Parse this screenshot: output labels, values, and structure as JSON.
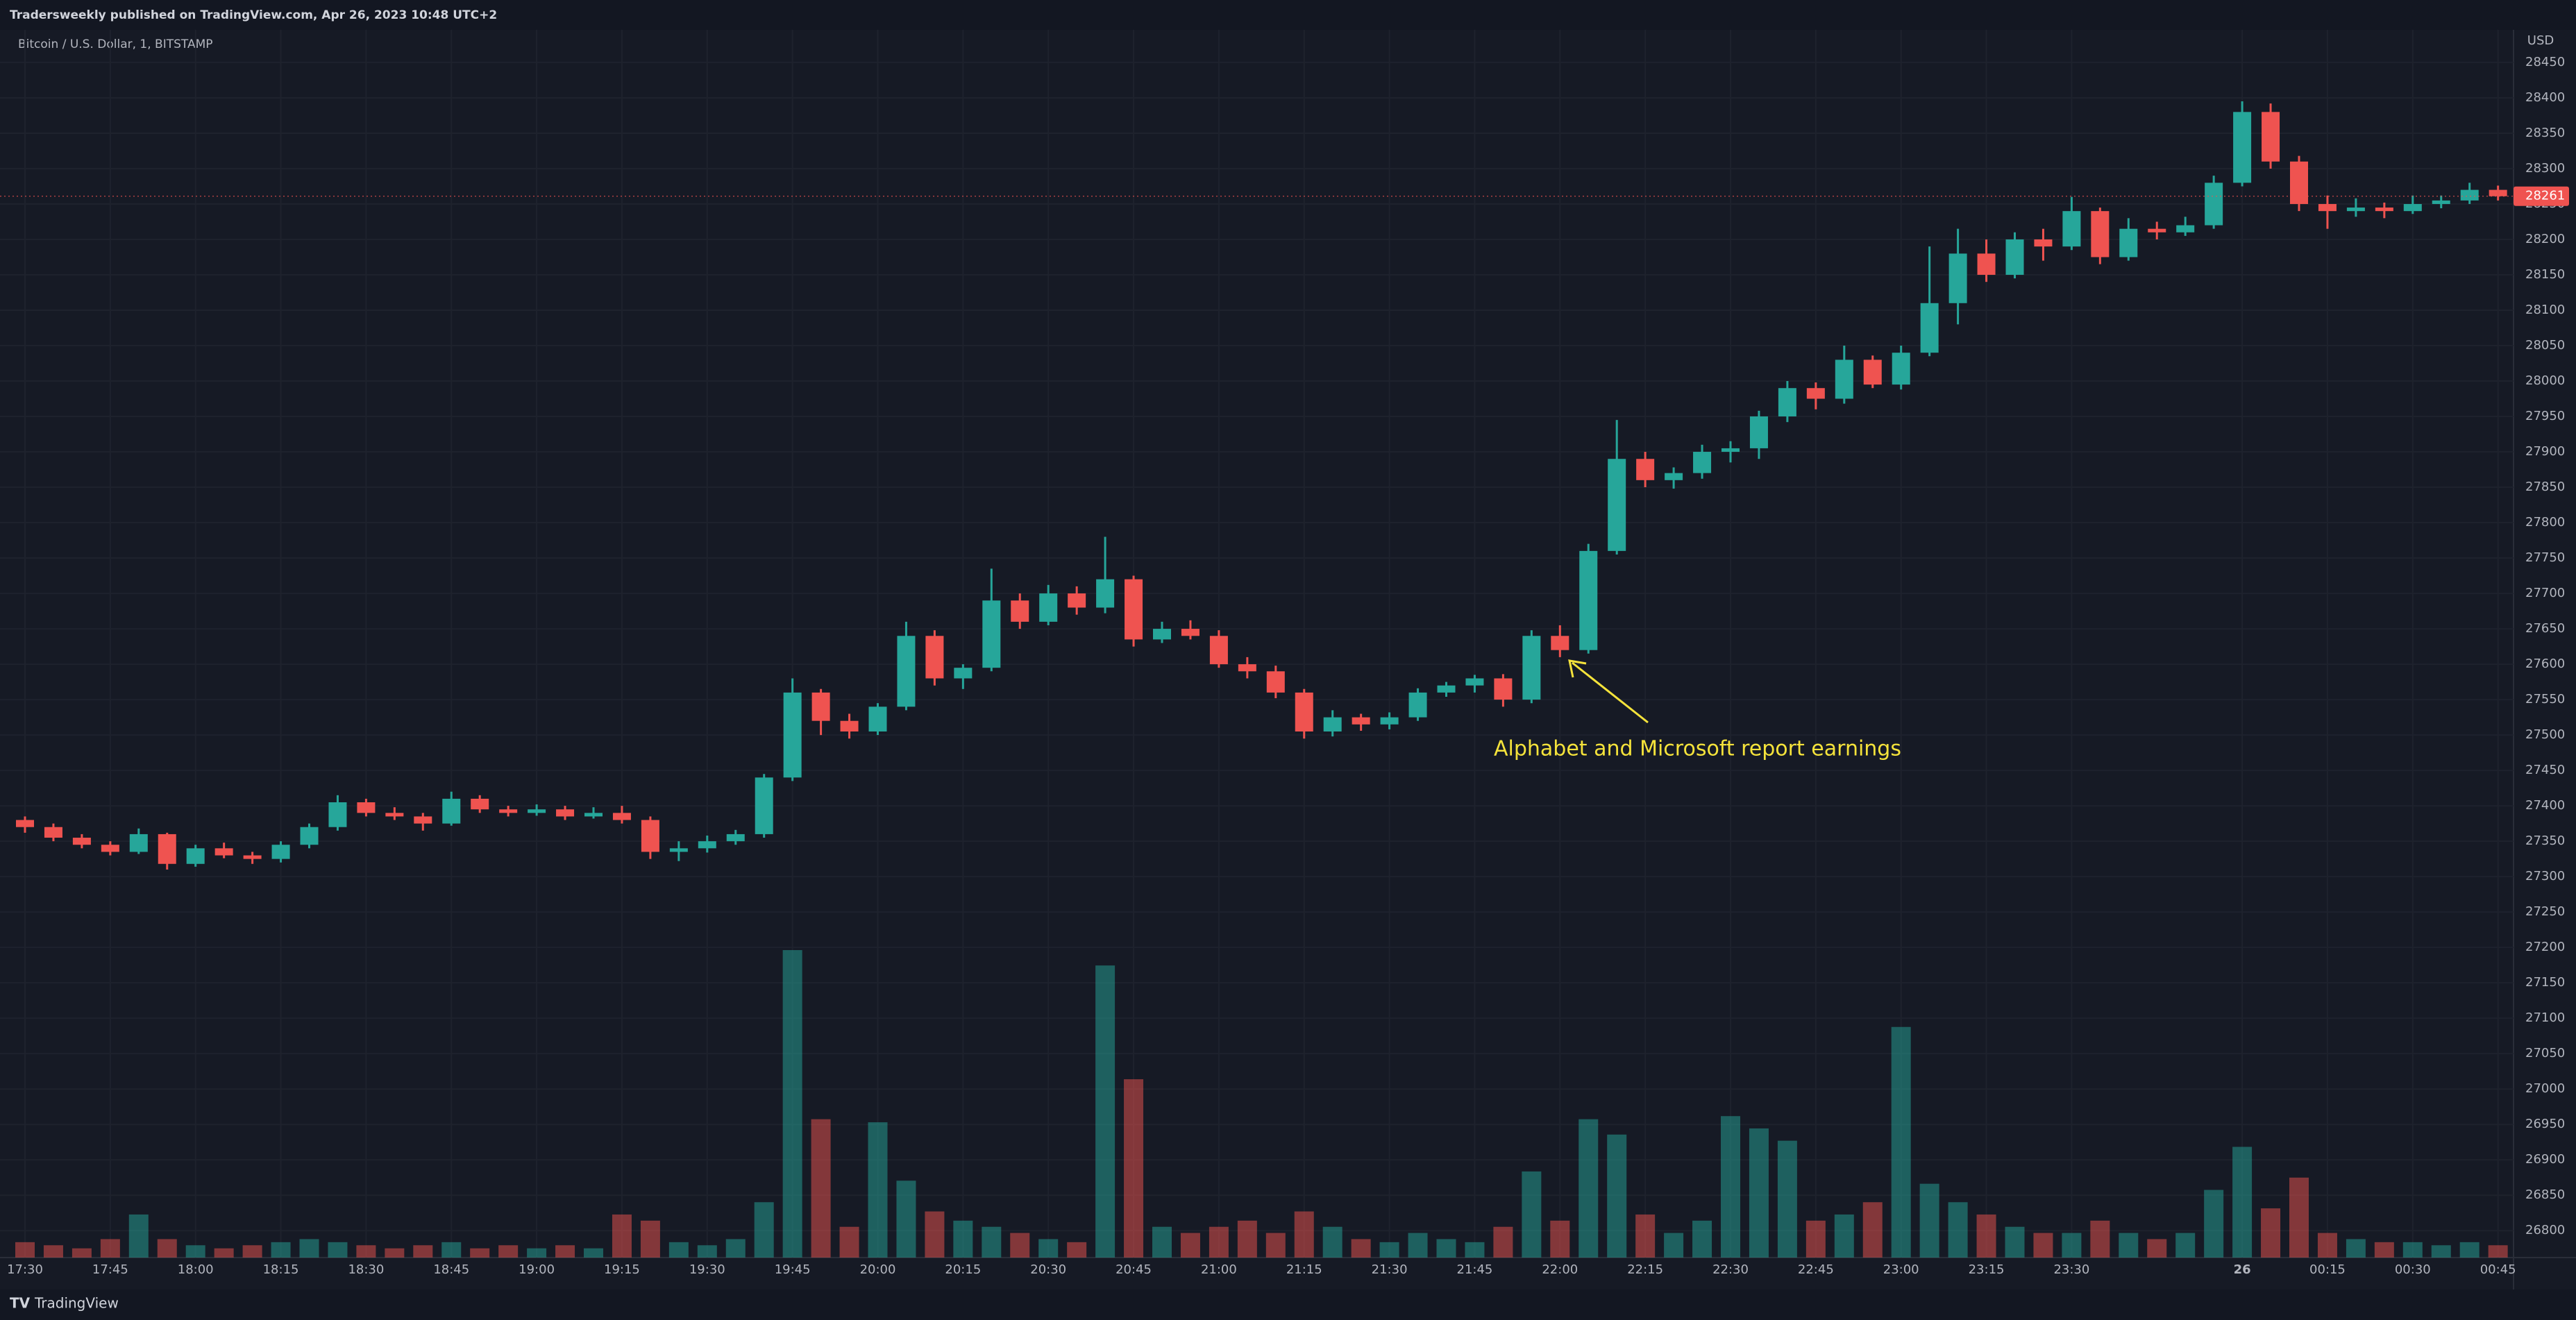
{
  "chart_data": {
    "type": "candlestick",
    "header": "Tradersweekly published on TradingView.com, Apr 26, 2023 10:48 UTC+2",
    "title": "Bitcoin / U.S. Dollar, 1, BITSTAMP",
    "currency": "USD",
    "footer": "TradingView",
    "annotation": "Alphabet and Microsoft report earnings",
    "up_color": "#26a69a",
    "down_color": "#ef5350",
    "grid": true,
    "categories": [
      "17:30",
      null,
      null,
      "17:45",
      null,
      null,
      "18:00",
      null,
      null,
      "18:15",
      null,
      null,
      "18:30",
      null,
      null,
      "18:45",
      null,
      null,
      "19:00",
      null,
      null,
      "19:15",
      null,
      null,
      "19:30",
      null,
      null,
      "19:45",
      null,
      null,
      "20:00",
      null,
      null,
      "20:15",
      null,
      null,
      "20:30",
      null,
      null,
      "20:45",
      null,
      null,
      "21:00",
      null,
      null,
      "21:15",
      null,
      null,
      "21:30",
      null,
      null,
      "21:45",
      null,
      null,
      "22:00",
      null,
      null,
      "22:15",
      null,
      null,
      "22:30",
      null,
      null,
      "22:45",
      null,
      null,
      "23:00",
      null,
      null,
      "23:15",
      null,
      null,
      "23:30",
      null,
      null,
      null,
      null,
      null,
      "26",
      null,
      null,
      "00:15",
      null,
      null,
      "00:30",
      null,
      null,
      "00:45"
    ],
    "ohlc": [
      [
        27380,
        27385,
        27362,
        27370
      ],
      [
        27370,
        27375,
        27350,
        27355
      ],
      [
        27355,
        27360,
        27340,
        27345
      ],
      [
        27345,
        27350,
        27330,
        27335
      ],
      [
        27335,
        27368,
        27332,
        27360
      ],
      [
        27360,
        27362,
        27310,
        27318
      ],
      [
        27318,
        27345,
        27314,
        27340
      ],
      [
        27340,
        27348,
        27326,
        27330
      ],
      [
        27330,
        27335,
        27318,
        27325
      ],
      [
        27325,
        27350,
        27320,
        27345
      ],
      [
        27345,
        27375,
        27340,
        27370
      ],
      [
        27370,
        27415,
        27365,
        27405
      ],
      [
        27405,
        27410,
        27385,
        27390
      ],
      [
        27390,
        27398,
        27380,
        27385
      ],
      [
        27385,
        27390,
        27365,
        27375
      ],
      [
        27375,
        27420,
        27372,
        27410
      ],
      [
        27410,
        27415,
        27390,
        27395
      ],
      [
        27395,
        27400,
        27385,
        27390
      ],
      [
        27390,
        27402,
        27386,
        27395
      ],
      [
        27395,
        27400,
        27380,
        27385
      ],
      [
        27385,
        27398,
        27382,
        27390
      ],
      [
        27390,
        27400,
        27375,
        27380
      ],
      [
        27380,
        27385,
        27325,
        27335
      ],
      [
        27335,
        27350,
        27322,
        27340
      ],
      [
        27340,
        27358,
        27334,
        27350
      ],
      [
        27350,
        27366,
        27345,
        27360
      ],
      [
        27360,
        27445,
        27355,
        27440
      ],
      [
        27440,
        27580,
        27435,
        27560
      ],
      [
        27560,
        27565,
        27500,
        27520
      ],
      [
        27520,
        27530,
        27495,
        27505
      ],
      [
        27505,
        27545,
        27500,
        27540
      ],
      [
        27540,
        27660,
        27535,
        27640
      ],
      [
        27640,
        27648,
        27570,
        27580
      ],
      [
        27580,
        27600,
        27565,
        27595
      ],
      [
        27595,
        27735,
        27590,
        27690
      ],
      [
        27690,
        27700,
        27650,
        27660
      ],
      [
        27660,
        27712,
        27655,
        27700
      ],
      [
        27700,
        27710,
        27670,
        27680
      ],
      [
        27680,
        27780,
        27672,
        27720
      ],
      [
        27720,
        27725,
        27625,
        27635
      ],
      [
        27635,
        27660,
        27630,
        27650
      ],
      [
        27650,
        27662,
        27635,
        27640
      ],
      [
        27640,
        27648,
        27595,
        27600
      ],
      [
        27600,
        27610,
        27580,
        27590
      ],
      [
        27590,
        27598,
        27552,
        27560
      ],
      [
        27560,
        27565,
        27495,
        27505
      ],
      [
        27505,
        27535,
        27498,
        27525
      ],
      [
        27525,
        27530,
        27506,
        27515
      ],
      [
        27515,
        27532,
        27508,
        27525
      ],
      [
        27525,
        27566,
        27520,
        27560
      ],
      [
        27560,
        27575,
        27554,
        27570
      ],
      [
        27570,
        27585,
        27560,
        27580
      ],
      [
        27580,
        27586,
        27540,
        27550
      ],
      [
        27550,
        27648,
        27545,
        27640
      ],
      [
        27640,
        27655,
        27610,
        27620
      ],
      [
        27620,
        27770,
        27615,
        27760
      ],
      [
        27760,
        27945,
        27755,
        27890
      ],
      [
        27890,
        27900,
        27850,
        27860
      ],
      [
        27860,
        27878,
        27848,
        27870
      ],
      [
        27870,
        27910,
        27862,
        27900
      ],
      [
        27900,
        27915,
        27885,
        27905
      ],
      [
        27905,
        27958,
        27890,
        27950
      ],
      [
        27950,
        28000,
        27942,
        27990
      ],
      [
        27990,
        27998,
        27960,
        27975
      ],
      [
        27975,
        28050,
        27968,
        28030
      ],
      [
        28030,
        28036,
        27990,
        27995
      ],
      [
        27995,
        28050,
        27988,
        28040
      ],
      [
        28040,
        28190,
        28035,
        28110
      ],
      [
        28110,
        28215,
        28080,
        28180
      ],
      [
        28180,
        28200,
        28140,
        28150
      ],
      [
        28150,
        28210,
        28145,
        28200
      ],
      [
        28200,
        28215,
        28170,
        28190
      ],
      [
        28190,
        28260,
        28185,
        28240
      ],
      [
        28240,
        28245,
        28165,
        28175
      ],
      [
        28175,
        28230,
        28170,
        28215
      ],
      [
        28215,
        28225,
        28200,
        28210
      ],
      [
        28210,
        28232,
        28205,
        28220
      ],
      [
        28220,
        28290,
        28215,
        28280
      ],
      [
        28280,
        28395,
        28275,
        28380
      ],
      [
        28380,
        28392,
        28300,
        28310
      ],
      [
        28310,
        28318,
        28240,
        28250
      ],
      [
        28250,
        28262,
        28215,
        28240
      ],
      [
        28240,
        28258,
        28232,
        28245
      ],
      [
        28245,
        28252,
        28230,
        28240
      ],
      [
        28240,
        28262,
        28236,
        28250
      ],
      [
        28250,
        28262,
        28244,
        28255
      ],
      [
        28255,
        28280,
        28250,
        28270
      ],
      [
        28270,
        28276,
        28255,
        28261
      ]
    ],
    "volume": [
      5,
      4,
      3,
      6,
      14,
      6,
      4,
      3,
      4,
      5,
      6,
      5,
      4,
      3,
      4,
      5,
      3,
      4,
      3,
      4,
      3,
      14,
      12,
      5,
      4,
      6,
      18,
      100,
      45,
      10,
      44,
      25,
      15,
      12,
      10,
      8,
      6,
      5,
      95,
      58,
      10,
      8,
      10,
      12,
      8,
      15,
      10,
      6,
      5,
      8,
      6,
      5,
      10,
      28,
      12,
      45,
      40,
      14,
      8,
      12,
      46,
      42,
      38,
      12,
      14,
      18,
      75,
      24,
      18,
      14,
      10,
      8,
      8,
      12,
      8,
      6,
      8,
      22,
      36,
      16,
      26,
      8,
      6,
      5,
      5,
      4,
      5,
      4
    ],
    "ylim": [
      26762,
      28496
    ],
    "y2lim": [
      0,
      100
    ],
    "yticks": [
      26800,
      26850,
      26900,
      26950,
      27000,
      27050,
      27100,
      27150,
      27200,
      27250,
      27300,
      27350,
      27400,
      27450,
      27500,
      27550,
      27600,
      27650,
      27700,
      27750,
      27800,
      27850,
      27900,
      27950,
      28000,
      28050,
      28100,
      28150,
      28200,
      28250,
      28300,
      28350,
      28400,
      28450
    ]
  }
}
